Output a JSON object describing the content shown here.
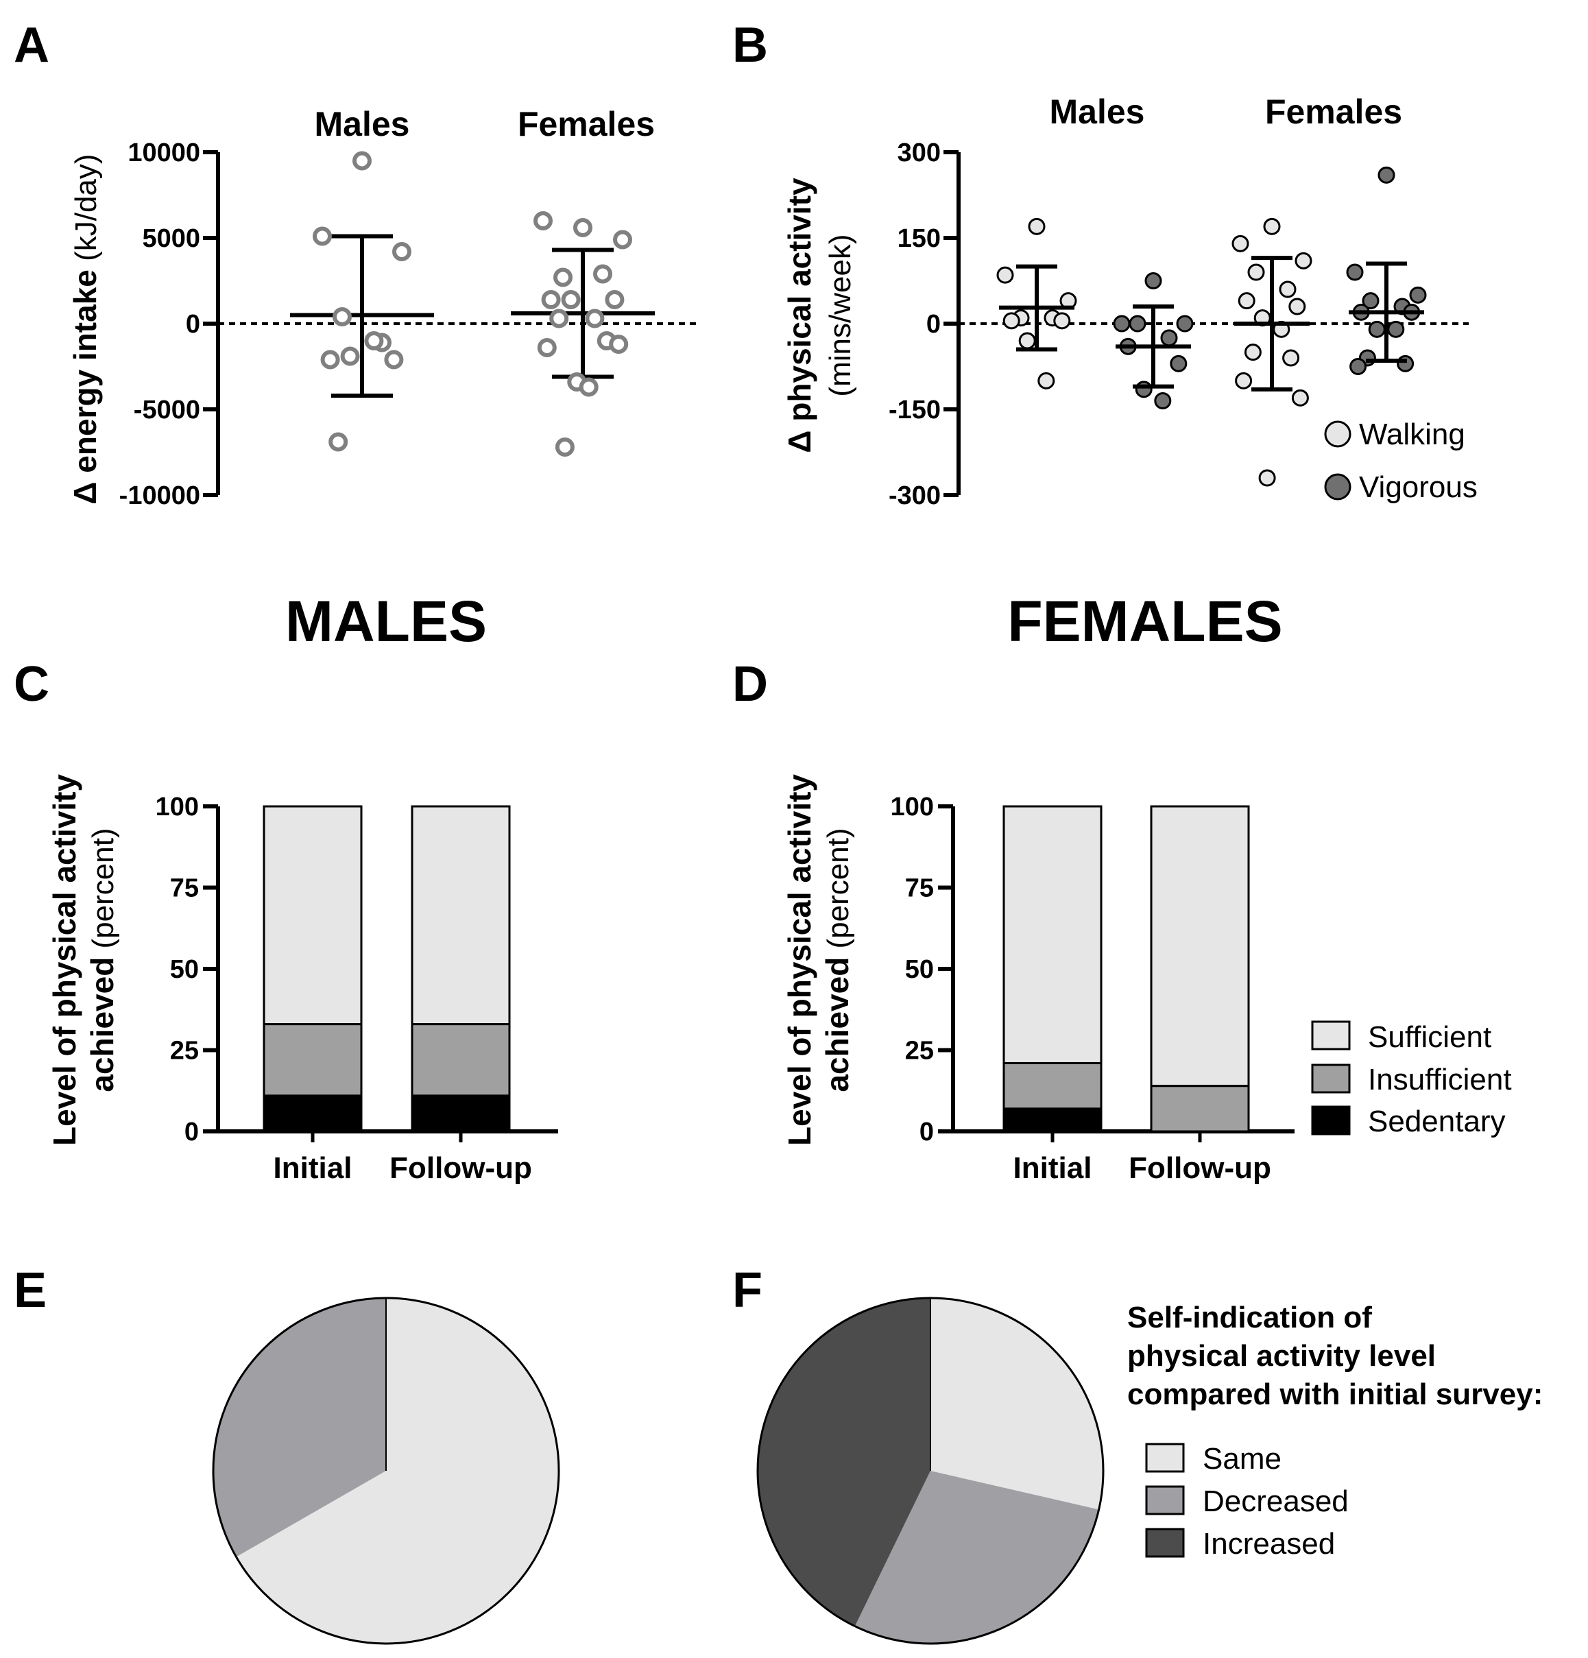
{
  "chart_data": [
    {
      "panel": "A",
      "type": "scatter",
      "ylabel_bold": "Δ energy intake",
      "ylabel_units": " (kJ/day)",
      "ylim": [
        -10000,
        10000
      ],
      "yticks": [
        10000,
        5000,
        0,
        -5000,
        -10000
      ],
      "yticklabels": [
        "10000",
        "5000",
        "0",
        "-5000",
        "-10000"
      ],
      "groups": [
        {
          "name": "Males",
          "mean": 500,
          "upper": 5100,
          "lower": -4200,
          "points": [
            9500,
            5100,
            4200,
            400,
            -1100,
            -2100,
            -2100,
            -1900,
            -1000,
            -6900
          ]
        },
        {
          "name": "Females",
          "mean": 600,
          "upper": 4300,
          "lower": -3100,
          "points": [
            5600,
            6000,
            4900,
            2700,
            2900,
            1400,
            1400,
            1400,
            300,
            300,
            -1000,
            -1400,
            -1200,
            -3400,
            -3700,
            -7200
          ]
        }
      ]
    },
    {
      "panel": "B",
      "type": "scatter",
      "ylabel_bold": "Δ physical activity",
      "ylabel_units": "(mins/week)",
      "ylim": [
        -300,
        300
      ],
      "yticks": [
        300,
        150,
        0,
        -150,
        -300
      ],
      "yticklabels": [
        "300",
        "150",
        "0",
        "-150",
        "-300"
      ],
      "group_titles": [
        "Males",
        "Females"
      ],
      "series": [
        {
          "name": "Walking",
          "group": "Males",
          "mean": 28,
          "upper": 100,
          "lower": -45,
          "points": [
            170,
            85,
            40,
            10,
            10,
            5,
            5,
            -30,
            -100
          ]
        },
        {
          "name": "Vigorous",
          "group": "Males",
          "mean": -40,
          "upper": 30,
          "lower": -110,
          "points": [
            75,
            0,
            0,
            0,
            -25,
            -40,
            -70,
            -115,
            -135
          ]
        },
        {
          "name": "Walking",
          "group": "Females",
          "mean": 0,
          "upper": 115,
          "lower": -115,
          "points": [
            170,
            140,
            110,
            90,
            60,
            40,
            30,
            10,
            -10,
            -50,
            -60,
            -100,
            -130,
            -270
          ]
        },
        {
          "name": "Vigorous",
          "group": "Females",
          "mean": 20,
          "upper": 105,
          "lower": -65,
          "points": [
            260,
            90,
            50,
            40,
            30,
            20,
            20,
            -10,
            -10,
            -60,
            -70,
            -75
          ]
        }
      ],
      "legend": [
        {
          "label": "Walking",
          "color": "#e6e6e6"
        },
        {
          "label": "Vigorous",
          "color": "#707070"
        }
      ]
    },
    {
      "panel": "C",
      "type": "bar",
      "stacked": true,
      "section_title": "MALES",
      "ylabel_line1": "Level of physical activity",
      "ylabel_line2_bold": "achieved",
      "ylabel_line2_units": " (percent)",
      "ylim": [
        0,
        100
      ],
      "yticks": [
        100,
        75,
        50,
        25,
        0
      ],
      "yticklabels": [
        "100",
        "75",
        "50",
        "25",
        "0"
      ],
      "categories": [
        "Initial",
        "Follow-up"
      ],
      "series": [
        {
          "name": "Sedentary",
          "values": [
            11,
            11
          ],
          "color": "#000000"
        },
        {
          "name": "Insufficient",
          "values": [
            22,
            22
          ],
          "color": "#a0a0a0"
        },
        {
          "name": "Sufficient",
          "values": [
            67,
            67
          ],
          "color": "#e6e6e6"
        }
      ]
    },
    {
      "panel": "D",
      "type": "bar",
      "stacked": true,
      "section_title": "FEMALES",
      "ylabel_line1": "Level of physical activity",
      "ylabel_line2_bold": "achieved",
      "ylabel_line2_units": " (percent)",
      "ylim": [
        0,
        100
      ],
      "yticks": [
        100,
        75,
        50,
        25,
        0
      ],
      "yticklabels": [
        "100",
        "75",
        "50",
        "25",
        "0"
      ],
      "categories": [
        "Initial",
        "Follow-up"
      ],
      "series": [
        {
          "name": "Sedentary",
          "values": [
            7,
            0
          ],
          "color": "#000000"
        },
        {
          "name": "Insufficient",
          "values": [
            14,
            14
          ],
          "color": "#a0a0a0"
        },
        {
          "name": "Sufficient",
          "values": [
            79,
            86
          ],
          "color": "#e6e6e6"
        }
      ],
      "legend": [
        {
          "label": "Sufficient",
          "color": "#e6e6e6"
        },
        {
          "label": "Insufficient",
          "color": "#a0a0a0"
        },
        {
          "label": "Sedentary",
          "color": "#000000"
        }
      ]
    },
    {
      "panel": "E",
      "type": "pie",
      "slices": [
        {
          "label": "Same",
          "value": 66.7,
          "color": "#e6e6e6"
        },
        {
          "label": "Decreased",
          "value": 33.3,
          "color": "#a0a0a4"
        }
      ]
    },
    {
      "panel": "F",
      "type": "pie",
      "slices": [
        {
          "label": "Same",
          "value": 28.6,
          "color": "#e6e6e6"
        },
        {
          "label": "Decreased",
          "value": 28.6,
          "color": "#a0a0a4"
        },
        {
          "label": "Increased",
          "value": 42.8,
          "color": "#4c4c4c"
        }
      ],
      "legend_title": [
        "Self-indication of",
        "physical activity level",
        "compared with initial survey:"
      ],
      "legend": [
        {
          "label": "Same",
          "color": "#e6e6e6"
        },
        {
          "label": "Decreased",
          "color": "#a0a0a4"
        },
        {
          "label": "Increased",
          "color": "#4c4c4c"
        }
      ]
    }
  ]
}
